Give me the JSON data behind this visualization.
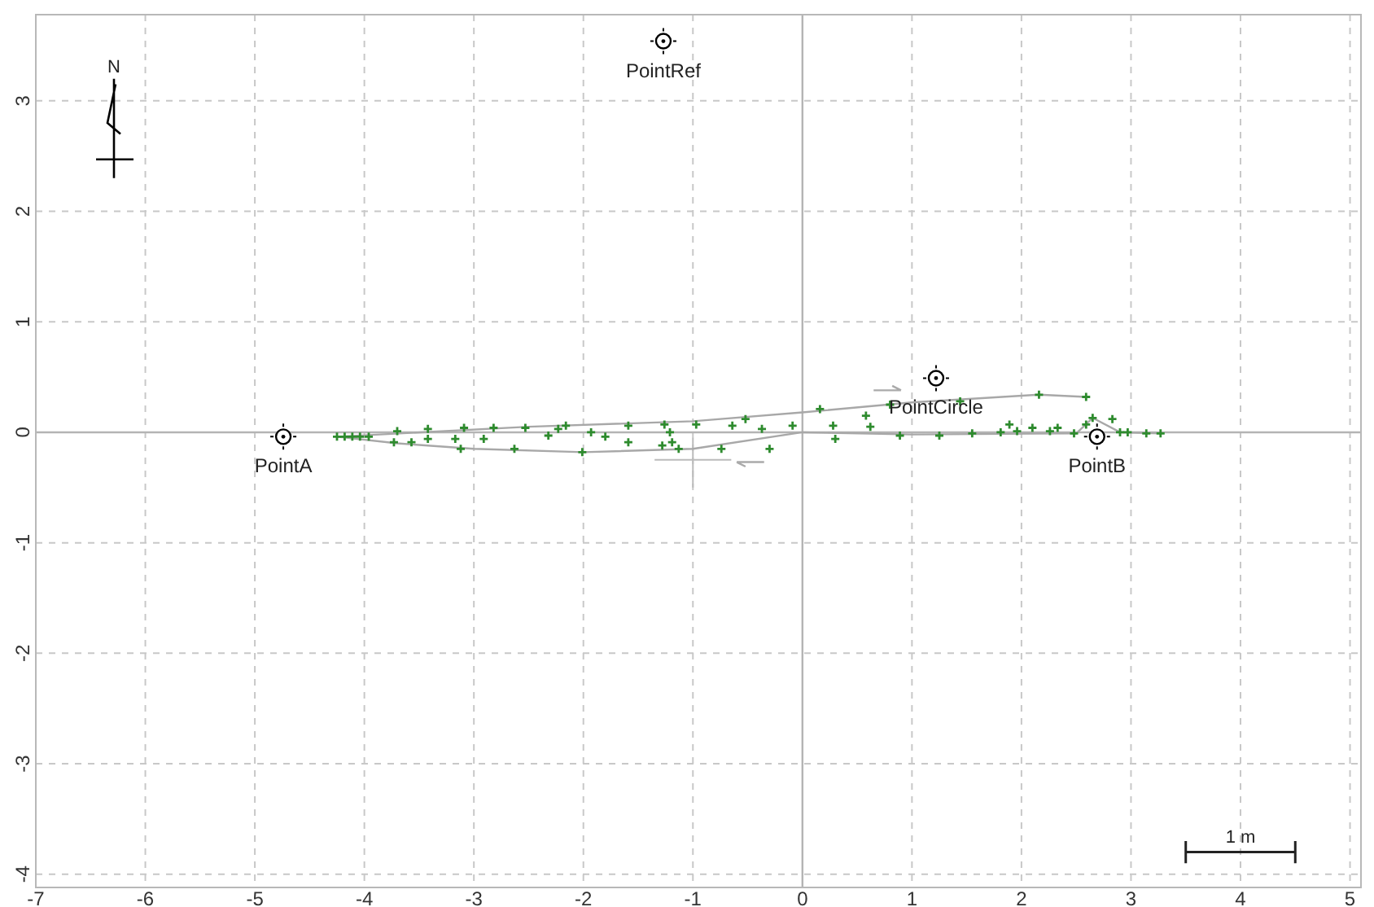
{
  "chart_data": {
    "type": "scatter",
    "xlim": [
      -7,
      5.1
    ],
    "ylim": [
      -4.12,
      3.78
    ],
    "xticks": [
      -7,
      -6,
      -5,
      -4,
      -3,
      -2,
      -1,
      0,
      1,
      2,
      3,
      4,
      5
    ],
    "yticks": [
      -4,
      -3,
      -2,
      -1,
      0,
      1,
      2,
      3
    ],
    "grid": true,
    "legend": false,
    "annotations": [
      "N",
      "1 m"
    ],
    "series": [
      {
        "type": "line",
        "color": "#a8a8a8",
        "marker": "none",
        "line_style": "solid",
        "x": [
          -4.25,
          -2.5,
          -1,
          0,
          1,
          2.16,
          2.59
        ],
        "values": [
          -0.04,
          0.05,
          0.1,
          0.18,
          0.27,
          0.34,
          0.32
        ]
      },
      {
        "type": "line",
        "color": "#a8a8a8",
        "marker": "none",
        "line_style": "solid",
        "x": [
          -4.25,
          -3.7,
          -3,
          -2,
          -1,
          0,
          1,
          2.5,
          2.65,
          2.9,
          3.27
        ],
        "values": [
          -0.04,
          -0.1,
          -0.15,
          -0.18,
          -0.15,
          0,
          -0.02,
          -0.01,
          0.13,
          0,
          -0.01
        ]
      },
      {
        "type": "scatter",
        "color": "#2e8b2e",
        "marker": "cross",
        "x": [
          -4.25,
          -4.18,
          -4.11,
          -4.04,
          -3.96,
          -3.7,
          -3.73,
          -3.57,
          -3.42,
          -3.42,
          -3.17,
          -3.09,
          -3.12,
          -2.91,
          -2.82,
          -2.63,
          -2.53,
          -2.32,
          -2.23,
          -2.16,
          -2.01,
          -1.93,
          -1.8,
          -1.59,
          -1.59,
          -1.26,
          -1.21,
          -1.19,
          -1.28,
          -1.13,
          -0.97,
          -0.74,
          -0.64,
          -0.52,
          -0.37,
          -0.3,
          -0.09,
          0.16,
          0.28,
          0.3,
          0.58,
          0.62,
          0.8,
          0.89,
          1.25,
          1.44,
          1.55,
          1.81,
          1.89,
          1.96,
          2.1,
          2.16,
          2.26,
          2.33,
          2.48,
          2.59,
          2.59,
          2.65,
          2.83,
          2.9,
          2.97,
          3.14,
          3.27
        ],
        "values": [
          -0.04,
          -0.04,
          -0.04,
          -0.04,
          -0.04,
          0.01,
          -0.09,
          -0.09,
          0.03,
          -0.06,
          -0.06,
          0.04,
          -0.15,
          -0.06,
          0.04,
          -0.15,
          0.04,
          -0.03,
          0.03,
          0.06,
          -0.18,
          0,
          -0.04,
          0.06,
          -0.09,
          0.07,
          0,
          -0.09,
          -0.12,
          -0.15,
          0.07,
          -0.15,
          0.06,
          0.12,
          0.03,
          -0.15,
          0.06,
          0.21,
          0.06,
          -0.06,
          0.15,
          0.05,
          0.25,
          -0.03,
          -0.03,
          0.28,
          -0.01,
          0,
          0.07,
          0.01,
          0.04,
          0.34,
          0.01,
          0.04,
          -0.01,
          0.32,
          0.07,
          0.13,
          0.12,
          0,
          0,
          -0.01,
          -0.01
        ]
      },
      {
        "type": "scatter",
        "name": "PointA",
        "color": "#000000",
        "marker": "circle",
        "x": [
          -4.74
        ],
        "values": [
          -0.04
        ]
      },
      {
        "type": "scatter",
        "name": "PointB",
        "color": "#000000",
        "marker": "circle",
        "x": [
          2.69
        ],
        "values": [
          -0.04
        ]
      },
      {
        "type": "scatter",
        "name": "PointCircle",
        "color": "#000000",
        "marker": "circle",
        "x": [
          1.22
        ],
        "values": [
          0.49
        ]
      },
      {
        "type": "scatter",
        "name": "PointRef",
        "color": "#000000",
        "marker": "circle",
        "x": [
          -1.27
        ],
        "values": [
          3.54
        ]
      }
    ]
  }
}
